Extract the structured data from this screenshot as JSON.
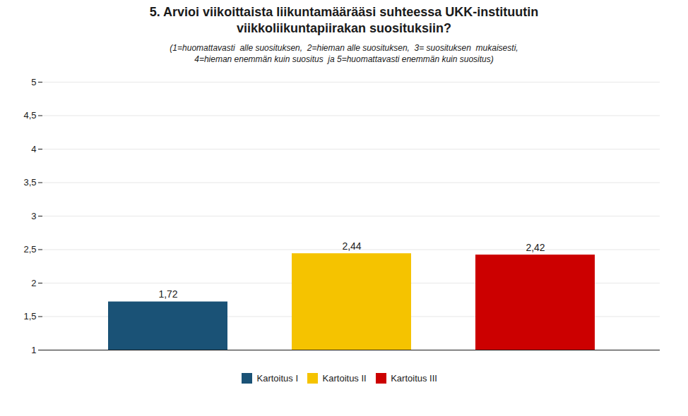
{
  "chart_data": {
    "type": "bar",
    "title": "5. Arvioi viikoittaista liikuntamäärääsi suhteessa UKK-instituutin\nviikkoliikuntapiirakan suosituksiin?",
    "subtitle": "(1=huomattavasti  alle suosituksen,  2=hieman alle suosituksen,  3= suosituksen  mukaisesti,\n4=hieman enemmän kuin suositus  ja 5=huomattavasti enemmän kuin suositus)",
    "categories": [
      "Kartoitus I",
      "Kartoitus II",
      "Kartoitus III"
    ],
    "values": [
      1.72,
      2.44,
      2.42
    ],
    "value_labels": [
      "1,72",
      "2,44",
      "2,42"
    ],
    "colors": [
      "#1a5276",
      "#f5c300",
      "#cc0000"
    ],
    "ylim": [
      1,
      5
    ],
    "yticks": [
      1,
      {
        "value": 1.5,
        "label": "1,5"
      },
      2,
      {
        "value": 2.5,
        "label": "2,5"
      },
      3,
      {
        "value": 3.5,
        "label": "3,5"
      },
      4,
      {
        "value": 4.5,
        "label": "4,5"
      },
      5
    ],
    "grid": true,
    "legend": "bottom",
    "data_labels": true,
    "tick_labels": "y"
  }
}
